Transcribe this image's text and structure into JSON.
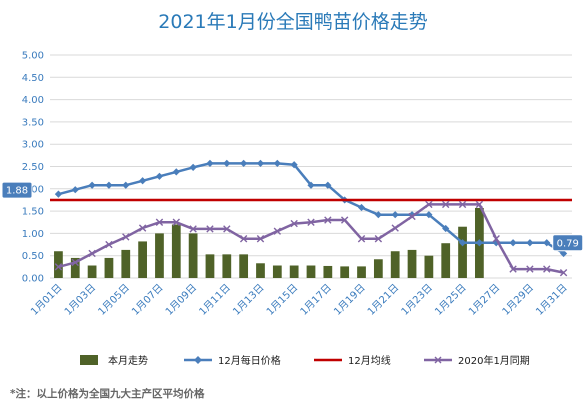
{
  "chart_data": {
    "type": "bar",
    "title": "2021年1月份全国鸭苗价格走势",
    "footnote": "*注：以上价格为全国九大主产区平均价格",
    "ylim": [
      0,
      5
    ],
    "y_ticks": [
      "0.00",
      "0.50",
      "1.00",
      "1.50",
      "2.00",
      "2.50",
      "3.00",
      "3.50",
      "4.00",
      "4.50",
      "5.00"
    ],
    "x_tick_labels": [
      "1月01日",
      "1月03日",
      "1月05日",
      "1月07日",
      "1月09日",
      "1月11日",
      "1月13日",
      "1月15日",
      "1月17日",
      "1月19日",
      "1月21日",
      "1月23日",
      "1月25日",
      "1月27日",
      "1月29日",
      "1月31日"
    ],
    "grid": true,
    "legend_position": "bottom",
    "series": [
      {
        "name": "本月走势",
        "type": "bar",
        "color": "#4f6228",
        "values": [
          0.6,
          0.45,
          0.28,
          0.45,
          0.63,
          0.82,
          1.0,
          1.2,
          1.0,
          0.53,
          0.53,
          0.53,
          0.33,
          0.28,
          0.28,
          0.28,
          0.27,
          0.26,
          0.26,
          0.42,
          0.6,
          0.63,
          0.5,
          0.78,
          1.15,
          1.57,
          null,
          null,
          null,
          null,
          null
        ]
      },
      {
        "name": "12月每日价格",
        "type": "line",
        "marker": "diamond",
        "color": "#4a7ebb",
        "values": [
          1.88,
          1.98,
          2.08,
          2.08,
          2.08,
          2.18,
          2.28,
          2.38,
          2.48,
          2.57,
          2.57,
          2.57,
          2.57,
          2.57,
          2.54,
          2.08,
          2.08,
          1.75,
          1.58,
          1.42,
          1.42,
          1.42,
          1.42,
          1.11,
          0.79,
          0.79,
          0.79,
          0.79,
          0.79,
          0.79,
          0.55
        ]
      },
      {
        "name": "12月均线",
        "type": "line",
        "color": "#c00000",
        "values": [
          1.75,
          1.75,
          1.75,
          1.75,
          1.75,
          1.75,
          1.75,
          1.75,
          1.75,
          1.75,
          1.75,
          1.75,
          1.75,
          1.75,
          1.75,
          1.75,
          1.75,
          1.75,
          1.75,
          1.75,
          1.75,
          1.75,
          1.75,
          1.75,
          1.75,
          1.75,
          1.75,
          1.75,
          1.75,
          1.75,
          1.75
        ]
      },
      {
        "name": "2020年1月同期",
        "type": "line",
        "marker": "x",
        "color": "#8064a2",
        "values": [
          0.25,
          0.35,
          0.55,
          0.75,
          0.92,
          1.12,
          1.25,
          1.25,
          1.1,
          1.1,
          1.1,
          0.88,
          0.88,
          1.05,
          1.22,
          1.25,
          1.3,
          1.3,
          0.88,
          0.88,
          1.12,
          1.38,
          1.65,
          1.65,
          1.65,
          1.65,
          0.88,
          0.2,
          0.2,
          0.2,
          0.12
        ]
      }
    ],
    "annotations": [
      {
        "text": "1.88",
        "series": "12月每日价格",
        "day_index": 0
      },
      {
        "text": "0.79",
        "series": "12月每日价格",
        "day_index": 29
      }
    ]
  }
}
